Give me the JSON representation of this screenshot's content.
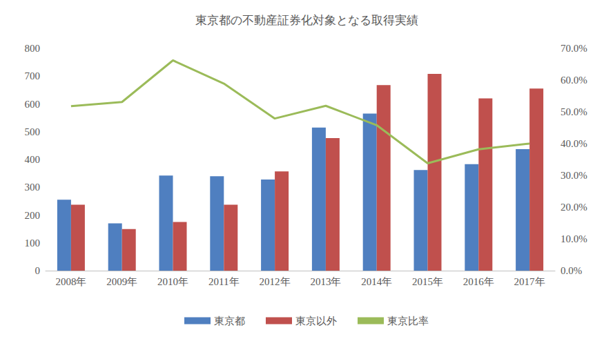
{
  "chart_data": {
    "type": "bar",
    "title": "東京都の不動産証券化対象となる取得実績",
    "categories": [
      "2008年",
      "2009年",
      "2010年",
      "2011年",
      "2012年",
      "2013年",
      "2014年",
      "2015年",
      "2016年",
      "2017年"
    ],
    "series": [
      {
        "name": "東京都",
        "type": "bar",
        "color": "#4f7fc0",
        "values": [
          255,
          170,
          342,
          340,
          328,
          515,
          565,
          362,
          383,
          437
        ]
      },
      {
        "name": "東京以外",
        "type": "bar",
        "color": "#c0504d",
        "values": [
          237,
          150,
          175,
          237,
          357,
          477,
          668,
          708,
          620,
          655
        ]
      },
      {
        "name": "東京比率",
        "type": "line",
        "axis": "y2",
        "color": "#9bbb59",
        "marker": "none",
        "values": [
          51.8,
          53.1,
          66.2,
          58.9,
          47.9,
          51.9,
          45.8,
          33.8,
          38.2,
          40.0
        ]
      }
    ],
    "ylim": [
      0,
      800
    ],
    "yticks": [
      0,
      100,
      200,
      300,
      400,
      500,
      600,
      700,
      800
    ],
    "y2lim": [
      0,
      70
    ],
    "y2ticks": [
      {
        "value": 0,
        "label": "0.0%"
      },
      {
        "value": 10,
        "label": "10.0%"
      },
      {
        "value": 20,
        "label": "20.0%"
      },
      {
        "value": 30,
        "label": "30.0%"
      },
      {
        "value": 40,
        "label": "40.0%"
      },
      {
        "value": 50,
        "label": "50.0%"
      },
      {
        "value": 60,
        "label": "60.0%"
      },
      {
        "value": 70,
        "label": "70.0%"
      }
    ],
    "grid": false,
    "legend": "bottom"
  }
}
